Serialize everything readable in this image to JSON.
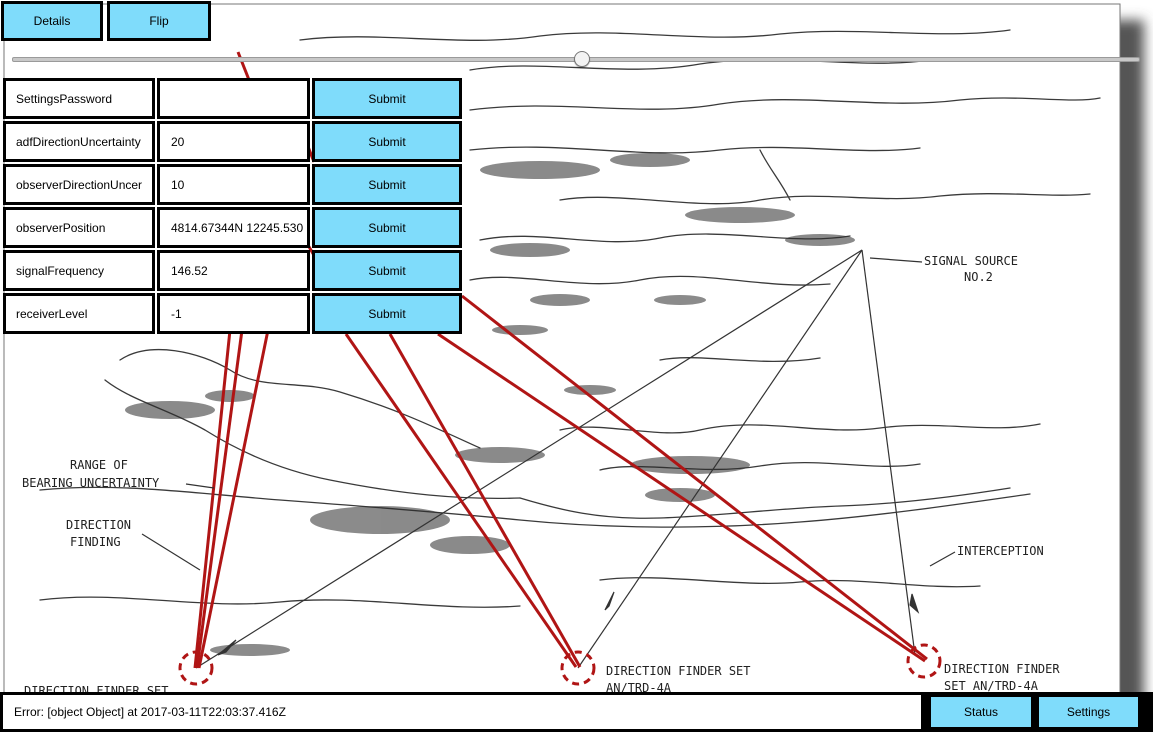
{
  "toolbar": {
    "details_label": "Details",
    "flip_label": "Flip"
  },
  "slider": {
    "value": 0.505
  },
  "fields": [
    {
      "label": "SettingsPassword",
      "value": "",
      "submit_label": "Submit"
    },
    {
      "label": "adfDirectionUncertainty",
      "value": "20",
      "submit_label": "Submit"
    },
    {
      "label": "observerDirectionUncer",
      "value": "10",
      "submit_label": "Submit"
    },
    {
      "label": "observerPosition",
      "value": "4814.67344N 12245.530",
      "submit_label": "Submit"
    },
    {
      "label": "signalFrequency",
      "value": "146.52",
      "submit_label": "Submit"
    },
    {
      "label": "receiverLevel",
      "value": "-1",
      "submit_label": "Submit"
    }
  ],
  "illustration": {
    "signal_source_line1": "SIGNAL SOURCE",
    "signal_source_line2": "NO.2",
    "range_line1": "RANGE OF",
    "range_line2": "BEARING UNCERTAINTY",
    "df_line1": "DIRECTION",
    "df_line2": "FINDING",
    "interception": "INTERCEPTION",
    "dfs_left": "DIRECTION FINDER SET",
    "dfs_mid_line1": "DIRECTION FINDER SET",
    "dfs_mid_line2": "AN/TRD-4A",
    "dfs_right_line1": "DIRECTION FINDER",
    "dfs_right_line2": "SET AN/TRD-4A"
  },
  "status": {
    "message": "Error: [object Object] at 2017-03-11T22:03:37.416Z"
  },
  "footer": {
    "status_label": "Status",
    "settings_label": "Settings"
  },
  "colors": {
    "button": "#7fdcfb",
    "bearing_line": "#b01515",
    "sketch": "#333333"
  }
}
